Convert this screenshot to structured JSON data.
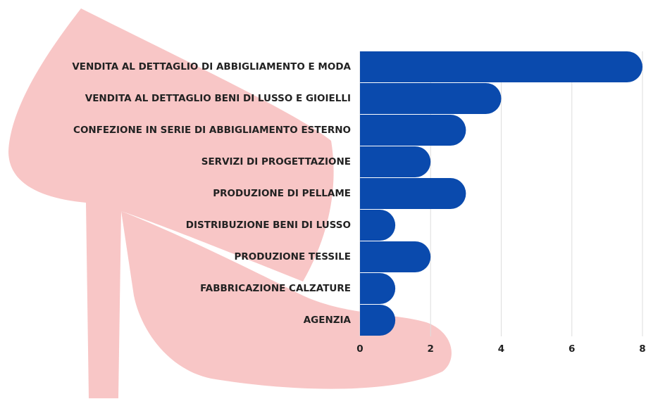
{
  "chart_data": {
    "type": "bar",
    "orientation": "horizontal",
    "categories": [
      "VENDITA AL DETTAGLIO DI ABBIGLIAMENTO E MODA",
      "VENDITA AL DETTAGLIO BENI DI LUSSO E GIOIELLI",
      "CONFEZIONE IN SERIE DI ABBIGLIAMENTO ESTERNO",
      "SERVIZI DI PROGETTAZIONE",
      "PRODUZIONE DI PELLAME",
      "DISTRIBUZIONE BENI DI LUSSO",
      "PRODUZIONE TESSILE",
      "FABBRICAZIONE CALZATURE",
      "AGENZIA"
    ],
    "values": [
      8,
      4,
      3,
      2,
      3,
      1,
      2,
      1,
      1
    ],
    "color": "#0a4aad",
    "xlim": [
      0,
      8
    ],
    "xticks": [
      0,
      2,
      4,
      6,
      8
    ],
    "grid": true
  }
}
